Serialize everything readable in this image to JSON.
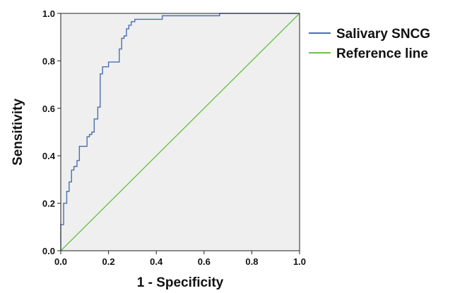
{
  "chart_data": {
    "type": "line",
    "title": "",
    "xlabel": "1 - Specificity",
    "ylabel": "Sensitivity",
    "xlim": [
      0,
      1
    ],
    "ylim": [
      0,
      1
    ],
    "xticks": [
      "0.0",
      "0.2",
      "0.4",
      "0.6",
      "0.8",
      "1.0"
    ],
    "yticks": [
      "0.0",
      "0.2",
      "0.4",
      "0.6",
      "0.8",
      "1.0"
    ],
    "grid": false,
    "legend_position": "right",
    "plot_background": "#efefef",
    "series": [
      {
        "name": "Salivary SNCG",
        "color": "#4a6fae",
        "x": [
          0,
          0,
          0.012,
          0.012,
          0.025,
          0.025,
          0.035,
          0.035,
          0.045,
          0.045,
          0.055,
          0.055,
          0.068,
          0.068,
          0.078,
          0.078,
          0.09,
          0.09,
          0.11,
          0.11,
          0.12,
          0.12,
          0.13,
          0.13,
          0.14,
          0.14,
          0.155,
          0.155,
          0.165,
          0.165,
          0.175,
          0.175,
          0.185,
          0.185,
          0.2,
          0.2,
          0.215,
          0.215,
          0.245,
          0.245,
          0.255,
          0.255,
          0.265,
          0.265,
          0.275,
          0.275,
          0.285,
          0.285,
          0.295,
          0.295,
          0.31,
          0.31,
          0.425,
          0.425,
          0.665,
          0.665,
          1.0
        ],
        "y": [
          0,
          0.11,
          0.11,
          0.2,
          0.2,
          0.25,
          0.25,
          0.29,
          0.29,
          0.34,
          0.34,
          0.355,
          0.355,
          0.38,
          0.38,
          0.44,
          0.44,
          0.44,
          0.44,
          0.48,
          0.48,
          0.49,
          0.49,
          0.5,
          0.5,
          0.555,
          0.555,
          0.605,
          0.605,
          0.745,
          0.745,
          0.775,
          0.775,
          0.775,
          0.775,
          0.795,
          0.795,
          0.795,
          0.795,
          0.85,
          0.85,
          0.895,
          0.895,
          0.905,
          0.905,
          0.935,
          0.935,
          0.95,
          0.95,
          0.965,
          0.965,
          0.975,
          0.975,
          0.99,
          0.99,
          1.0,
          1.0
        ]
      },
      {
        "name": "Reference line",
        "color": "#6cc24a",
        "x": [
          0,
          1
        ],
        "y": [
          0,
          1
        ]
      }
    ]
  }
}
